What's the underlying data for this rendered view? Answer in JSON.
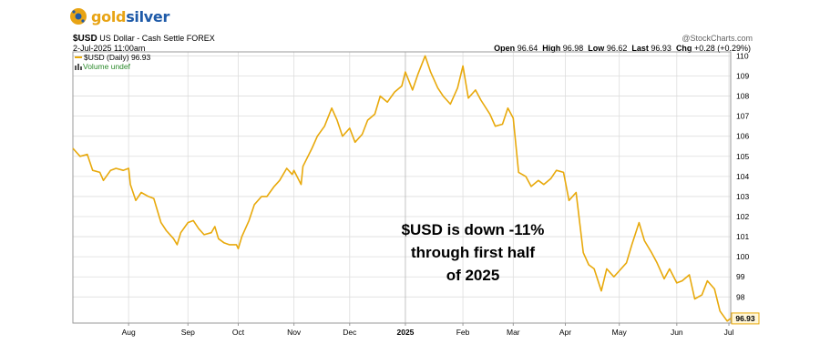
{
  "brand": {
    "part1": "gold",
    "part2": "silver",
    "icon": "coin-logo-icon",
    "gold_color": "#e8a415",
    "silver_color": "#1e5aa8"
  },
  "header": {
    "symbol": "$USD",
    "description": "US Dollar - Cash Settle FOREX",
    "datetime": "2-Jul-2025 11:00am",
    "source": "@StockCharts.com",
    "stats": {
      "open_label": "Open",
      "open": "96.64",
      "high_label": "High",
      "high": "96.98",
      "low_label": "Low",
      "low": "96.62",
      "last_label": "Last",
      "last": "96.93",
      "chg_label": "Chg",
      "chg": "+0.28 (+0.29%)"
    }
  },
  "legend": {
    "series": "$USD (Daily) 96.93",
    "volume": "Volume undef"
  },
  "annotation": [
    "$USD is down -11%",
    "through first half",
    "of 2025"
  ],
  "colors": {
    "line": "#e8a90b",
    "grid": "#dddddd",
    "frame": "#999999"
  },
  "chart_data": {
    "type": "line",
    "ylim": [
      96.7,
      110.2
    ],
    "y_ticks": [
      "110",
      "109",
      "108",
      "107",
      "106",
      "105",
      "104",
      "103",
      "102",
      "101",
      "100",
      "99",
      "98"
    ],
    "xlim": [
      "2024-07-01",
      "2025-07-02"
    ],
    "x_ticks": [
      {
        "label": "Aug",
        "date": "2024-08-01"
      },
      {
        "label": "Sep",
        "date": "2024-09-03"
      },
      {
        "label": "Oct",
        "date": "2024-10-01"
      },
      {
        "label": "Nov",
        "date": "2024-11-01"
      },
      {
        "label": "Dec",
        "date": "2024-12-02"
      },
      {
        "label": "2025",
        "date": "2025-01-02",
        "bold": true
      },
      {
        "label": "Feb",
        "date": "2025-02-03"
      },
      {
        "label": "Mar",
        "date": "2025-03-03"
      },
      {
        "label": "Apr",
        "date": "2025-04-01"
      },
      {
        "label": "May",
        "date": "2025-05-01"
      },
      {
        "label": "Jun",
        "date": "2025-06-02"
      },
      {
        "label": "Jul",
        "date": "2025-07-01"
      }
    ],
    "last_value_label": "96.93",
    "series": [
      {
        "name": "$USD (Daily)",
        "points": [
          [
            "2024-07-01",
            105.4
          ],
          [
            "2024-07-05",
            105.0
          ],
          [
            "2024-07-09",
            105.1
          ],
          [
            "2024-07-12",
            104.3
          ],
          [
            "2024-07-16",
            104.2
          ],
          [
            "2024-07-18",
            103.8
          ],
          [
            "2024-07-22",
            104.3
          ],
          [
            "2024-07-25",
            104.4
          ],
          [
            "2024-07-29",
            104.3
          ],
          [
            "2024-08-01",
            104.4
          ],
          [
            "2024-08-02",
            103.6
          ],
          [
            "2024-08-05",
            102.8
          ],
          [
            "2024-08-08",
            103.2
          ],
          [
            "2024-08-12",
            103.0
          ],
          [
            "2024-08-15",
            102.9
          ],
          [
            "2024-08-19",
            101.7
          ],
          [
            "2024-08-22",
            101.3
          ],
          [
            "2024-08-26",
            100.9
          ],
          [
            "2024-08-28",
            100.6
          ],
          [
            "2024-08-30",
            101.2
          ],
          [
            "2024-09-03",
            101.7
          ],
          [
            "2024-09-06",
            101.8
          ],
          [
            "2024-09-09",
            101.4
          ],
          [
            "2024-09-12",
            101.1
          ],
          [
            "2024-09-16",
            101.2
          ],
          [
            "2024-09-18",
            101.5
          ],
          [
            "2024-09-20",
            100.9
          ],
          [
            "2024-09-23",
            100.7
          ],
          [
            "2024-09-26",
            100.6
          ],
          [
            "2024-09-30",
            100.6
          ],
          [
            "2024-10-01",
            100.4
          ],
          [
            "2024-10-03",
            101.0
          ],
          [
            "2024-10-07",
            101.8
          ],
          [
            "2024-10-10",
            102.6
          ],
          [
            "2024-10-14",
            103.0
          ],
          [
            "2024-10-17",
            103.0
          ],
          [
            "2024-10-21",
            103.5
          ],
          [
            "2024-10-24",
            103.8
          ],
          [
            "2024-10-28",
            104.4
          ],
          [
            "2024-10-31",
            104.1
          ],
          [
            "2024-11-01",
            104.3
          ],
          [
            "2024-11-05",
            103.6
          ],
          [
            "2024-11-06",
            104.5
          ],
          [
            "2024-11-11",
            105.4
          ],
          [
            "2024-11-14",
            106.0
          ],
          [
            "2024-11-18",
            106.5
          ],
          [
            "2024-11-22",
            107.4
          ],
          [
            "2024-11-25",
            106.8
          ],
          [
            "2024-11-28",
            106.0
          ],
          [
            "2024-12-02",
            106.4
          ],
          [
            "2024-12-05",
            105.7
          ],
          [
            "2024-12-09",
            106.1
          ],
          [
            "2024-12-12",
            106.8
          ],
          [
            "2024-12-16",
            107.1
          ],
          [
            "2024-12-19",
            108.0
          ],
          [
            "2024-12-23",
            107.7
          ],
          [
            "2024-12-27",
            108.2
          ],
          [
            "2024-12-31",
            108.5
          ],
          [
            "2025-01-02",
            109.2
          ],
          [
            "2025-01-06",
            108.3
          ],
          [
            "2025-01-09",
            109.1
          ],
          [
            "2025-01-13",
            110.0
          ],
          [
            "2025-01-16",
            109.2
          ],
          [
            "2025-01-20",
            108.4
          ],
          [
            "2025-01-23",
            108.0
          ],
          [
            "2025-01-27",
            107.6
          ],
          [
            "2025-01-31",
            108.4
          ],
          [
            "2025-02-03",
            109.5
          ],
          [
            "2025-02-06",
            107.9
          ],
          [
            "2025-02-10",
            108.3
          ],
          [
            "2025-02-13",
            107.8
          ],
          [
            "2025-02-18",
            107.1
          ],
          [
            "2025-02-21",
            106.5
          ],
          [
            "2025-02-25",
            106.6
          ],
          [
            "2025-02-28",
            107.4
          ],
          [
            "2025-03-03",
            106.9
          ],
          [
            "2025-03-06",
            104.2
          ],
          [
            "2025-03-10",
            104.0
          ],
          [
            "2025-03-13",
            103.5
          ],
          [
            "2025-03-17",
            103.8
          ],
          [
            "2025-03-20",
            103.6
          ],
          [
            "2025-03-24",
            103.9
          ],
          [
            "2025-03-27",
            104.3
          ],
          [
            "2025-03-31",
            104.2
          ],
          [
            "2025-04-03",
            102.8
          ],
          [
            "2025-04-07",
            103.2
          ],
          [
            "2025-04-11",
            100.2
          ],
          [
            "2025-04-14",
            99.6
          ],
          [
            "2025-04-17",
            99.4
          ],
          [
            "2025-04-21",
            98.3
          ],
          [
            "2025-04-24",
            99.4
          ],
          [
            "2025-04-28",
            99.0
          ],
          [
            "2025-05-01",
            99.3
          ],
          [
            "2025-05-05",
            99.7
          ],
          [
            "2025-05-08",
            100.6
          ],
          [
            "2025-05-12",
            101.7
          ],
          [
            "2025-05-15",
            100.8
          ],
          [
            "2025-05-19",
            100.2
          ],
          [
            "2025-05-22",
            99.7
          ],
          [
            "2025-05-26",
            98.9
          ],
          [
            "2025-05-29",
            99.4
          ],
          [
            "2025-06-02",
            98.7
          ],
          [
            "2025-06-05",
            98.8
          ],
          [
            "2025-06-09",
            99.1
          ],
          [
            "2025-06-12",
            97.9
          ],
          [
            "2025-06-16",
            98.1
          ],
          [
            "2025-06-19",
            98.8
          ],
          [
            "2025-06-23",
            98.4
          ],
          [
            "2025-06-26",
            97.3
          ],
          [
            "2025-06-30",
            96.8
          ],
          [
            "2025-07-02",
            96.93
          ]
        ]
      }
    ]
  }
}
